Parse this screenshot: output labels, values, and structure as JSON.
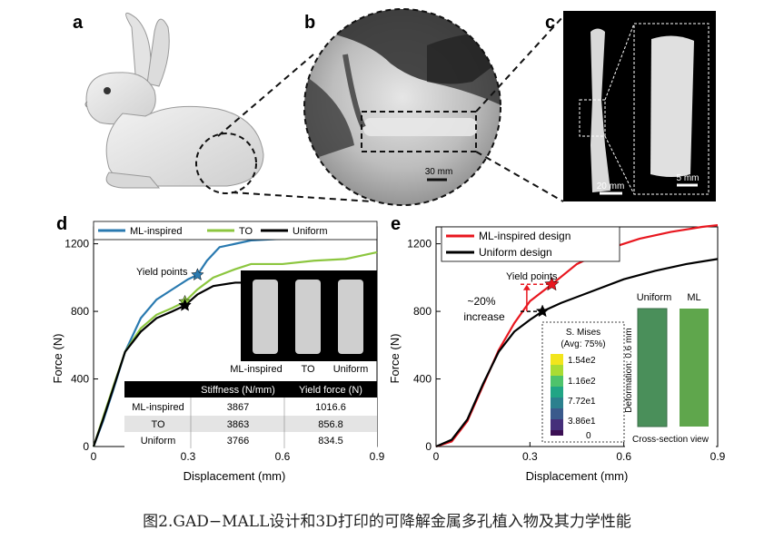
{
  "panels": {
    "a": "a",
    "b": "b",
    "c": "c",
    "d": "d",
    "e": "e"
  },
  "panel_b": {
    "scale_bar": "30 mm"
  },
  "panel_c": {
    "scale_left": "20 mm",
    "scale_right": "5 mm"
  },
  "caption": "图2.GAD−MALL设计和3D打印的可降解金属多孔植入物及其力学性能",
  "colors": {
    "ml_blue": "#2a7ab0",
    "to_green": "#8cc63f",
    "uniform_black": "#000000",
    "ml_red": "#e8171f"
  },
  "chart_d": {
    "legend": [
      "ML-inspired",
      "TO",
      "Uniform"
    ],
    "xlabel": "Displacement (mm)",
    "ylabel": "Force (N)",
    "xticks": [
      "0",
      "0.3",
      "0.6",
      "0.9"
    ],
    "yticks": [
      "0",
      "400",
      "800",
      "1200"
    ],
    "annotation": "Yield points",
    "inset_labels": [
      "ML-inspired",
      "TO",
      "Uniform"
    ],
    "table": {
      "headers": [
        "",
        "Stiffness (N/mm)",
        "Yield force (N)"
      ],
      "rows": [
        [
          "ML-inspired",
          "3867",
          "1016.6"
        ],
        [
          "TO",
          "3863",
          "856.8"
        ],
        [
          "Uniform",
          "3766",
          "834.5"
        ]
      ]
    }
  },
  "chart_e": {
    "legend": [
      "ML-inspired design",
      "Uniform design"
    ],
    "xlabel": "Displacement (mm)",
    "ylabel": "Force (N)",
    "xticks": [
      "0",
      "0.3",
      "0.6",
      "0.9"
    ],
    "yticks": [
      "0",
      "400",
      "800",
      "1200"
    ],
    "annotation": "Yield points",
    "increase_line1": "~20%",
    "increase_line2": "increase",
    "inset_titles": [
      "Uniform",
      "ML"
    ],
    "inset_side": "Deformation: 0.6 mm",
    "inset_bottom": "Cross-section view",
    "colorbar_title1": "S. Mises",
    "colorbar_title2": "(Avg: 75%)",
    "colorbar_ticks": [
      "1.54e2",
      "1.16e2",
      "7.72e1",
      "3.86e1",
      "0"
    ]
  },
  "chart_data": [
    {
      "type": "line",
      "xlabel": "Displacement (mm)",
      "ylabel": "Force (N)",
      "xlim": [
        0,
        0.9
      ],
      "ylim": [
        0,
        1300
      ],
      "series": [
        {
          "name": "ML-inspired",
          "x": [
            0,
            0.03,
            0.06,
            0.1,
            0.15,
            0.2,
            0.25,
            0.3,
            0.33,
            0.36,
            0.4,
            0.45,
            0.5,
            0.6,
            0.7,
            0.8,
            0.9
          ],
          "y": [
            0,
            150,
            320,
            560,
            760,
            870,
            930,
            990,
            1016,
            1100,
            1180,
            1200,
            1220,
            1230,
            1230,
            1240,
            1260
          ]
        },
        {
          "name": "TO",
          "x": [
            0,
            0.03,
            0.06,
            0.1,
            0.15,
            0.2,
            0.25,
            0.29,
            0.33,
            0.38,
            0.45,
            0.5,
            0.6,
            0.7,
            0.8,
            0.9
          ],
          "y": [
            0,
            170,
            340,
            560,
            700,
            780,
            820,
            857,
            930,
            1000,
            1050,
            1080,
            1080,
            1100,
            1110,
            1150
          ]
        },
        {
          "name": "Uniform",
          "x": [
            0,
            0.03,
            0.06,
            0.1,
            0.15,
            0.2,
            0.25,
            0.29,
            0.33,
            0.38,
            0.45,
            0.5,
            0.6,
            0.7,
            0.8,
            0.9
          ],
          "y": [
            0,
            160,
            330,
            560,
            680,
            760,
            800,
            835,
            900,
            950,
            970,
            970,
            980,
            990,
            990,
            1000
          ]
        }
      ],
      "annotations": [
        "Yield points"
      ]
    },
    {
      "type": "line",
      "xlabel": "Displacement (mm)",
      "ylabel": "Force (N)",
      "xlim": [
        0,
        0.9
      ],
      "ylim": [
        0,
        1300
      ],
      "series": [
        {
          "name": "ML-inspired design",
          "x": [
            0,
            0.05,
            0.1,
            0.15,
            0.2,
            0.25,
            0.3,
            0.37,
            0.45,
            0.55,
            0.65,
            0.75,
            0.85,
            0.9
          ],
          "y": [
            0,
            30,
            150,
            360,
            570,
            730,
            860,
            960,
            1080,
            1170,
            1230,
            1270,
            1300,
            1310
          ]
        },
        {
          "name": "Uniform design",
          "x": [
            0,
            0.05,
            0.1,
            0.15,
            0.2,
            0.25,
            0.3,
            0.34,
            0.4,
            0.5,
            0.6,
            0.7,
            0.8,
            0.9
          ],
          "y": [
            0,
            40,
            160,
            370,
            560,
            680,
            750,
            800,
            850,
            920,
            990,
            1040,
            1080,
            1110
          ]
        }
      ],
      "annotations": [
        "Yield points",
        "~20% increase"
      ]
    }
  ]
}
